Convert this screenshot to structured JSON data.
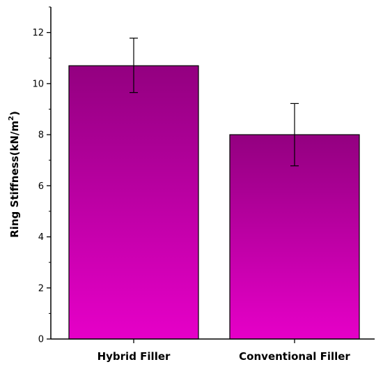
{
  "chart_data": {
    "type": "bar",
    "categories": [
      "Hybrid Filler",
      "Conventional Filler"
    ],
    "values": [
      10.7,
      8.0
    ],
    "errors": [
      {
        "low": 9.65,
        "high": 11.78
      },
      {
        "low": 6.78,
        "high": 9.22
      }
    ],
    "title": "",
    "xlabel": "",
    "ylabel": {
      "base": "Ring Stiffness(kN/m",
      "superscript": "2",
      "close": ")"
    },
    "ylim": [
      0,
      13
    ],
    "yticks": [
      0,
      2,
      4,
      6,
      8,
      10,
      12
    ],
    "ytick_labels": [
      "0",
      "2",
      "4",
      "6",
      "8",
      "10",
      "12"
    ],
    "minor_ytick_step": 1,
    "grid": false,
    "legend": "none",
    "colors": {
      "bar_top": "#930080",
      "bar_bottom": "#e600c8",
      "bar_stroke": "#000000",
      "axis": "#000000",
      "error_bar": "#000000"
    }
  }
}
